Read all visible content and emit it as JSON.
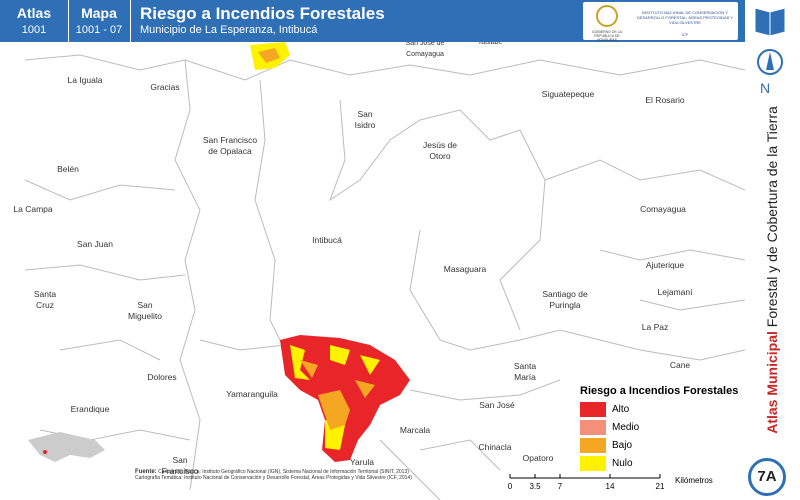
{
  "header": {
    "atlas_label": "Atlas",
    "atlas_code": "1001",
    "map_label": "Mapa",
    "map_code": "1001 - 07",
    "title": "Riesgo a Incendios Forestales",
    "subtitle": "Municipio de La Esperanza, Intibucá",
    "logo_gov": "GOBIERNO DE LA REPÚBLICA DE HONDURAS",
    "logo_inst": "INSTITUTO NACIONAL DE CONSERVACIÓN Y DESARROLLO FORESTAL, ÁREAS PROTEGIDAS Y VIDA SILVESTRE",
    "logo_abbr": "ICF"
  },
  "sidebar": {
    "north": "N",
    "atlas_bold": "Atlas Municipal",
    "atlas_rest": "Forestal y de Cobertura de la Tierra",
    "sheet": "7A"
  },
  "places": [
    [
      "La Iguala"
    ],
    [
      "Gracias"
    ],
    [
      "San Francisco",
      "de Opalaca"
    ],
    [
      "Belén"
    ],
    [
      "La Campa"
    ],
    [
      "San Juan"
    ],
    [
      "Santa",
      "Cruz"
    ],
    [
      "San",
      "Miguelito"
    ],
    [
      "Dolores"
    ],
    [
      "Erandique"
    ],
    [
      "Yamaranguila"
    ],
    [
      "San",
      "Francisco"
    ],
    [
      "Intibucá"
    ],
    [
      "San",
      "Isidro"
    ],
    [
      "Jesús de",
      "Otoro"
    ],
    [
      "Siguatepeque"
    ],
    [
      "El Rosario"
    ],
    [
      "Comayagua"
    ],
    [
      "Masaguara"
    ],
    [
      "Santiago de",
      "Puringla"
    ],
    [
      "Ajuterique"
    ],
    [
      "Lejamaní"
    ],
    [
      "La Paz"
    ],
    [
      "Santa",
      "María"
    ],
    [
      "San José"
    ],
    [
      "Marcala"
    ],
    [
      "Chinacla"
    ],
    [
      "Opatoro"
    ],
    [
      "Yarula"
    ],
    [
      "Cane"
    ],
    [
      "Taulabé"
    ],
    [
      "San José de",
      "Comayagua"
    ]
  ],
  "legend": {
    "title": "Riesgo a Incendios Forestales",
    "items": [
      {
        "label": "Alto",
        "color": "#e8262a"
      },
      {
        "label": "Medio",
        "color": "#f4907a"
      },
      {
        "label": "Bajo",
        "color": "#f5a623"
      },
      {
        "label": "Nulo",
        "color": "#fff200"
      }
    ]
  },
  "scale": {
    "ticks": [
      "0",
      "3.5",
      "7",
      "14",
      "21"
    ],
    "unit": "Kilómetros"
  },
  "sources": {
    "label": "Fuente:",
    "line1": "Cartografía Básica: Instituto Geográfico Nacional (IGN), Sistema Nacional de Información Territorial (SINIT, 2013)",
    "line2": "Cartografía Temática: Instituto Nacional de Conservación y Desarrollo Forestal, Áreas Protegidas y Vida Silvestre (ICF, 2014)"
  }
}
